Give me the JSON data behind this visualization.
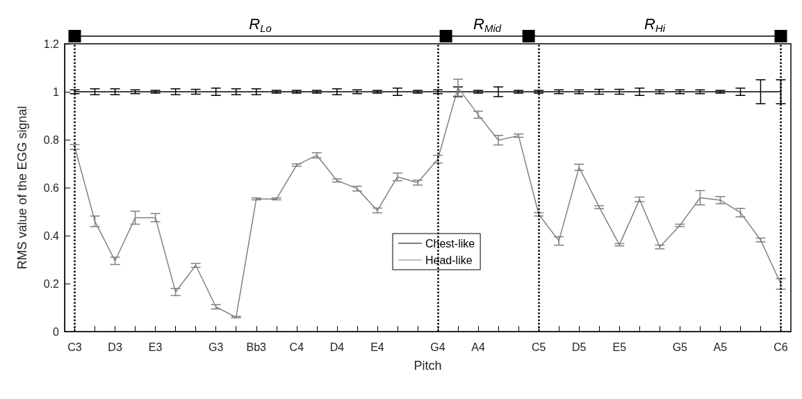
{
  "chart_data": {
    "type": "line",
    "xlabel": "Pitch",
    "ylabel": "RMS value of the EGG signal",
    "categories": [
      "C3",
      null,
      "D3",
      null,
      "E3",
      null,
      null,
      "G3",
      null,
      "Bb3",
      null,
      "C4",
      null,
      "D4",
      null,
      "E4",
      null,
      null,
      "G4",
      null,
      "A4",
      null,
      null,
      "C5",
      null,
      "D5",
      null,
      "E5",
      null,
      null,
      "G5",
      null,
      "A5",
      null,
      null,
      "C6"
    ],
    "ylim": [
      0,
      1.2
    ],
    "yticks": [
      0,
      0.2,
      0.4,
      0.6,
      0.8,
      1,
      1.2
    ],
    "grid": false,
    "legend": "center",
    "line_style": "solid",
    "series": [
      {
        "name": "Chest-like",
        "color": "#000000",
        "values": [
          1,
          1,
          1,
          1,
          1,
          1,
          1,
          1,
          1,
          1,
          1,
          1,
          1,
          1,
          1,
          1,
          1,
          1,
          1,
          1,
          1,
          1,
          1,
          1,
          1,
          1,
          1,
          1,
          1,
          1,
          1,
          1,
          1,
          1,
          1,
          1
        ],
        "errors": [
          0.008,
          0.012,
          0.012,
          0.008,
          0.006,
          0.012,
          0.01,
          0.015,
          0.012,
          0.012,
          0.006,
          0.006,
          0.006,
          0.012,
          0.008,
          0.006,
          0.015,
          0.006,
          0.008,
          0.02,
          0.006,
          0.02,
          0.006,
          0.006,
          0.008,
          0.008,
          0.01,
          0.01,
          0.015,
          0.008,
          0.008,
          0.008,
          0.006,
          0.015,
          0.05,
          0.05
        ]
      },
      {
        "name": "Head-like",
        "color": "#808080",
        "values": [
          0.77,
          0.46,
          0.295,
          0.475,
          0.475,
          0.165,
          0.276,
          0.103,
          0.06,
          0.553,
          0.553,
          0.694,
          0.735,
          0.63,
          0.596,
          0.505,
          0.645,
          0.621,
          0.719,
          1.017,
          0.904,
          0.798,
          0.817,
          0.489,
          0.378,
          0.685,
          0.519,
          0.362,
          0.551,
          0.353,
          0.443,
          0.558,
          0.548,
          0.496,
          0.382,
          0.199
        ],
        "errors": [
          0.01,
          0.022,
          0.015,
          0.027,
          0.017,
          0.015,
          0.008,
          0.009,
          0.003,
          0.004,
          0.004,
          0.005,
          0.011,
          0.006,
          0.01,
          0.01,
          0.016,
          0.01,
          0.016,
          0.035,
          0.015,
          0.02,
          0.007,
          0.007,
          0.018,
          0.013,
          0.006,
          0.005,
          0.01,
          0.008,
          0.005,
          0.03,
          0.015,
          0.018,
          0.008,
          0.022
        ]
      }
    ],
    "ref_lines": [
      {
        "axis": "x",
        "value": "C3",
        "label": null,
        "line_style": "dotted",
        "color": "#000000"
      },
      {
        "axis": "x",
        "value": "C6",
        "label": null,
        "line_style": "dotted",
        "color": "#000000"
      }
    ],
    "annotations": [
      "R$_{Lo}$",
      "R$_{Mid}$",
      "R$_{Hi}$"
    ]
  }
}
